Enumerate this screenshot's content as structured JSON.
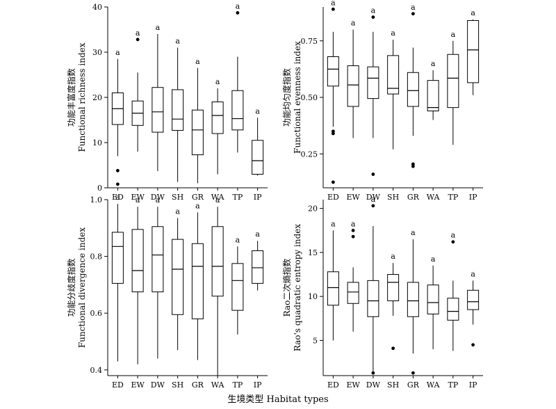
{
  "figure": {
    "xlabel": "生境类型 Habitat types"
  },
  "chart_data": [
    {
      "type": "boxplot",
      "ylabel_cn": "功能丰富度指数",
      "ylabel_en": "Functional richness index",
      "ylim": [
        0,
        40
      ],
      "ticks": [
        0,
        10,
        20,
        30,
        40
      ],
      "tick_labels": [
        "0",
        "10",
        "20",
        "30",
        "40"
      ],
      "categories": [
        "ED",
        "EW",
        "DW",
        "SH",
        "GR",
        "WA",
        "TP",
        "IP"
      ],
      "boxes": [
        {
          "min": 7,
          "q1": 14,
          "median": 17.5,
          "q3": 21,
          "max": 28.5,
          "outliers": [
            3.8,
            0.8
          ],
          "sig": "a"
        },
        {
          "min": 8,
          "q1": 13.8,
          "median": 16.5,
          "q3": 19.2,
          "max": 25.5,
          "outliers": [
            32.8
          ],
          "sig": "a"
        },
        {
          "min": 3.7,
          "q1": 12.3,
          "median": 16.8,
          "q3": 22.2,
          "max": 34,
          "outliers": [],
          "sig": "a"
        },
        {
          "min": 1.3,
          "q1": 12.7,
          "median": 15.2,
          "q3": 21.7,
          "max": 31,
          "outliers": [],
          "sig": "a"
        },
        {
          "min": 1,
          "q1": 7.3,
          "median": 12.8,
          "q3": 17.2,
          "max": 26.5,
          "outliers": [],
          "sig": "a"
        },
        {
          "min": 3,
          "q1": 12,
          "median": 16,
          "q3": 19,
          "max": 22,
          "outliers": [],
          "sig": "a"
        },
        {
          "min": 7.8,
          "q1": 12.8,
          "median": 15.3,
          "q3": 21.5,
          "max": 29,
          "outliers": [
            38.7
          ],
          "sig": "a"
        },
        {
          "min": 2.7,
          "q1": 3,
          "median": 6,
          "q3": 10.5,
          "max": 15.5,
          "outliers": [],
          "sig": "a"
        }
      ]
    },
    {
      "type": "boxplot",
      "ylabel_cn": "功能均匀度指数",
      "ylabel_en": "Functional evenness index",
      "ylim": [
        0.1,
        0.9
      ],
      "ticks": [
        0.25,
        0.5,
        0.75
      ],
      "tick_labels": [
        "0.25",
        "0.50",
        "0.75"
      ],
      "categories": [
        "ED",
        "EW",
        "DW",
        "SH",
        "GR",
        "WA",
        "TP",
        "IP"
      ],
      "boxes": [
        {
          "min": 0.37,
          "q1": 0.55,
          "median": 0.625,
          "q3": 0.68,
          "max": 0.79,
          "outliers": [
            0.89,
            0.35,
            0.34,
            0.125
          ],
          "sig": "a"
        },
        {
          "min": 0.32,
          "q1": 0.46,
          "median": 0.555,
          "q3": 0.64,
          "max": 0.8,
          "outliers": [],
          "sig": "a"
        },
        {
          "min": 0.32,
          "q1": 0.495,
          "median": 0.585,
          "q3": 0.635,
          "max": 0.79,
          "outliers": [
            0.855,
            0.16
          ],
          "sig": "a"
        },
        {
          "min": 0.27,
          "q1": 0.515,
          "median": 0.54,
          "q3": 0.685,
          "max": 0.755,
          "outliers": [],
          "sig": "a"
        },
        {
          "min": 0.33,
          "q1": 0.46,
          "median": 0.53,
          "q3": 0.61,
          "max": 0.72,
          "outliers": [
            0.87,
            0.205,
            0.195
          ],
          "sig": "a"
        },
        {
          "min": 0.4,
          "q1": 0.44,
          "median": 0.455,
          "q3": 0.575,
          "max": 0.62,
          "outliers": [],
          "sig": "a"
        },
        {
          "min": 0.29,
          "q1": 0.455,
          "median": 0.585,
          "q3": 0.69,
          "max": 0.75,
          "outliers": [],
          "sig": "a"
        },
        {
          "min": 0.51,
          "q1": 0.565,
          "median": 0.71,
          "q3": 0.84,
          "max": 0.845,
          "outliers": [],
          "sig": "a"
        }
      ]
    },
    {
      "type": "boxplot",
      "ylabel_cn": "功能分歧度指数",
      "ylabel_en": "Functional divergence index",
      "ylim": [
        0.38,
        1.0
      ],
      "ticks": [
        0.4,
        0.6,
        0.8,
        1.0
      ],
      "tick_labels": [
        "0.4",
        "0.6",
        "0.8",
        "1.0"
      ],
      "categories": [
        "ED",
        "EW",
        "DW",
        "SH",
        "GR",
        "WA",
        "TP",
        "IP"
      ],
      "boxes": [
        {
          "min": 0.43,
          "q1": 0.705,
          "median": 0.835,
          "q3": 0.885,
          "max": 0.985,
          "outliers": [],
          "sig": "a"
        },
        {
          "min": 0.42,
          "q1": 0.675,
          "median": 0.75,
          "q3": 0.895,
          "max": 0.975,
          "outliers": [],
          "sig": "a"
        },
        {
          "min": 0.44,
          "q1": 0.675,
          "median": 0.805,
          "q3": 0.905,
          "max": 0.975,
          "outliers": [],
          "sig": "a"
        },
        {
          "min": 0.47,
          "q1": 0.595,
          "median": 0.755,
          "q3": 0.86,
          "max": 0.935,
          "outliers": [],
          "sig": "a"
        },
        {
          "min": 0.435,
          "q1": 0.58,
          "median": 0.765,
          "q3": 0.845,
          "max": 0.955,
          "outliers": [],
          "sig": "a"
        },
        {
          "min": 0.38,
          "q1": 0.66,
          "median": 0.765,
          "q3": 0.905,
          "max": 0.975,
          "outliers": [],
          "sig": "a"
        },
        {
          "min": 0.525,
          "q1": 0.61,
          "median": 0.715,
          "q3": 0.775,
          "max": 0.835,
          "outliers": [],
          "sig": "a"
        },
        {
          "min": 0.68,
          "q1": 0.705,
          "median": 0.76,
          "q3": 0.82,
          "max": 0.855,
          "outliers": [],
          "sig": "a"
        }
      ]
    },
    {
      "type": "boxplot",
      "ylabel_cn": "Rao二次熵指数",
      "ylabel_en": "Rao's quadratic entropy index",
      "ylim": [
        1,
        21
      ],
      "ticks": [
        5,
        10,
        15,
        20
      ],
      "tick_labels": [
        "5",
        "10",
        "15",
        "20"
      ],
      "categories": [
        "ED",
        "EW",
        "DW",
        "SH",
        "GR",
        "WA",
        "TP",
        "IP"
      ],
      "boxes": [
        {
          "min": 5,
          "q1": 9,
          "median": 11,
          "q3": 12.8,
          "max": 17.5,
          "outliers": [],
          "sig": "a"
        },
        {
          "min": 6,
          "q1": 9.2,
          "median": 10.5,
          "q3": 11.6,
          "max": 13.3,
          "outliers": [
            17.5,
            16.8
          ],
          "sig": "a"
        },
        {
          "min": 1.5,
          "q1": 7.7,
          "median": 9.5,
          "q3": 11.8,
          "max": 18,
          "outliers": [
            20.3,
            1.3
          ],
          "sig": "a"
        },
        {
          "min": 7.8,
          "q1": 9.5,
          "median": 11.6,
          "q3": 12.5,
          "max": 13.8,
          "outliers": [
            4.1
          ],
          "sig": "a"
        },
        {
          "min": 3.5,
          "q1": 7.7,
          "median": 9.5,
          "q3": 11.6,
          "max": 16.5,
          "outliers": [
            1.3
          ],
          "sig": "a"
        },
        {
          "min": 4,
          "q1": 8,
          "median": 9.3,
          "q3": 11.3,
          "max": 13.5,
          "outliers": [],
          "sig": "a"
        },
        {
          "min": 3.8,
          "q1": 7.3,
          "median": 8.3,
          "q3": 9.8,
          "max": 11.8,
          "outliers": [
            16.2
          ],
          "sig": "a"
        },
        {
          "min": 6.8,
          "q1": 8.5,
          "median": 9.4,
          "q3": 10.7,
          "max": 11.8,
          "outliers": [
            4.5
          ],
          "sig": "a"
        }
      ]
    }
  ]
}
